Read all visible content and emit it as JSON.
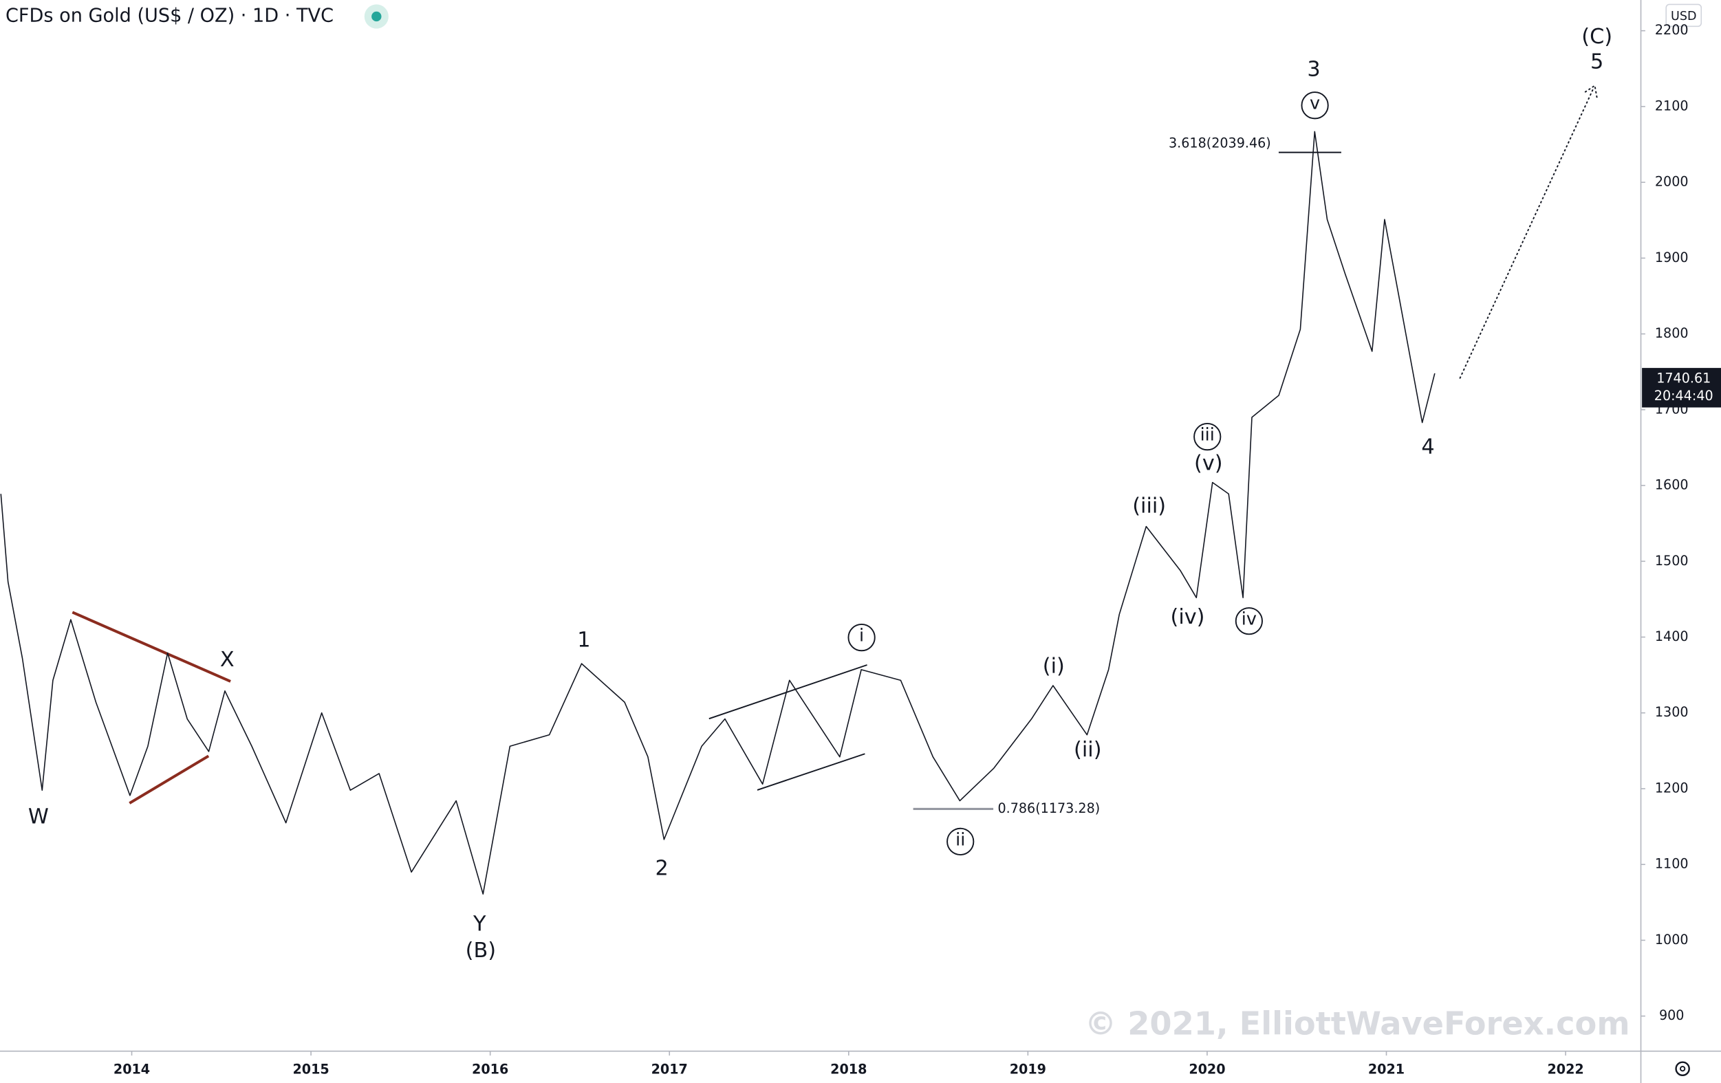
{
  "chart_data": {
    "type": "line",
    "title": "CFDs on Gold (US$ / OZ) · 1D · TVC",
    "currency": "USD",
    "color": "#131722",
    "x": [
      2013.27,
      2013.31,
      2013.39,
      2013.5,
      2013.56,
      2013.66,
      2013.8,
      2013.99,
      2014.09,
      2014.2,
      2014.31,
      2014.43,
      2014.52,
      2014.67,
      2014.86,
      2015.06,
      2015.22,
      2015.38,
      2015.56,
      2015.81,
      2015.96,
      2016.11,
      2016.33,
      2016.51,
      2016.75,
      2016.88,
      2016.97,
      2017.18,
      2017.31,
      2017.52,
      2017.67,
      2017.95,
      2018.07,
      2018.29,
      2018.47,
      2018.62,
      2018.81,
      2019.02,
      2019.14,
      2019.33,
      2019.45,
      2019.51,
      2019.66,
      2019.85,
      2019.94,
      2020.03,
      2020.12,
      2020.2,
      2020.25,
      2020.4,
      2020.52,
      2020.6,
      2020.67,
      2020.77,
      2020.92,
      2020.99,
      2021.07,
      2021.2,
      2021.27
    ],
    "values": [
      1589,
      1473,
      1372,
      1198,
      1343,
      1423,
      1314,
      1191,
      1256,
      1379,
      1292,
      1249,
      1329,
      1256,
      1155,
      1300,
      1198,
      1220,
      1090,
      1184,
      1061,
      1256,
      1271,
      1365,
      1314,
      1242,
      1133,
      1256,
      1292,
      1206,
      1343,
      1242,
      1357,
      1343,
      1242,
      1184,
      1227,
      1292,
      1336,
      1271,
      1357,
      1430,
      1546,
      1488,
      1452,
      1604,
      1589,
      1452,
      1690,
      1719,
      1806,
      2067,
      1951,
      1879,
      1777,
      1951,
      1850,
      1683,
      1748
    ],
    "xlim": [
      2013.265,
      2022.42
    ],
    "xticks": [
      2014,
      2015,
      2016,
      2017,
      2018,
      2019,
      2020,
      2021,
      2022
    ],
    "ylim": [
      853.7,
      2240.5
    ],
    "yticks": [
      900,
      1000,
      1100,
      1200,
      1300,
      1400,
      1500,
      1600,
      1700,
      1800,
      1900,
      2000,
      2100,
      2200
    ],
    "last_price": 1740.61,
    "last_time": "20:44:40",
    "fib_levels": [
      {
        "value": 2039.46,
        "label": "3.618(2039.46)"
      },
      {
        "value": 1173.28,
        "label": "0.786(1173.28)"
      }
    ],
    "annotations": [
      "W",
      "X",
      "Y",
      "(B)",
      "1",
      "2",
      "i",
      "ii",
      "(i)",
      "(ii)",
      "(iii)",
      "(iv)",
      "(v)",
      "iii",
      "iv",
      "v",
      "3",
      "4",
      "(C)",
      "5"
    ],
    "watermark": "© 2021, ElliottWaveForex.com"
  }
}
